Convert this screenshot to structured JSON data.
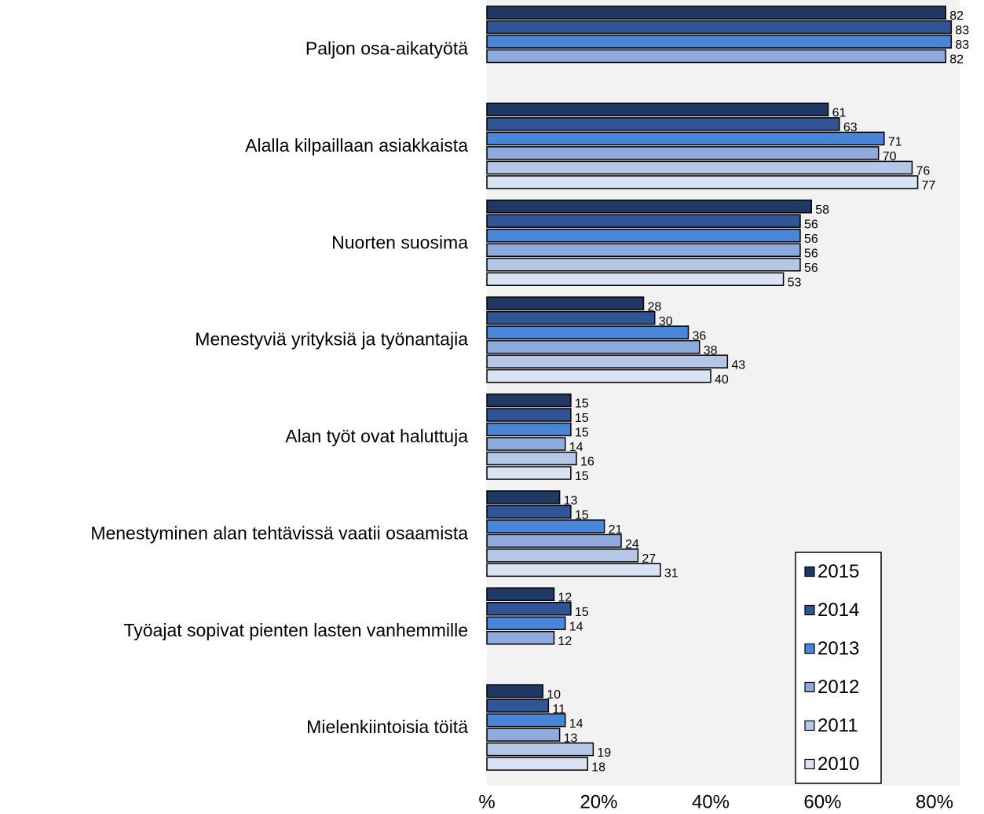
{
  "chart_data": {
    "type": "barh",
    "categories": [
      "Paljon osa-aikatyötä",
      "Alalla kilpaillaan asiakkaista",
      "Nuorten suosima",
      "Menestyviä yrityksiä ja työnantajia",
      "Alan työt ovat haluttuja",
      "Menestyminen alan tehtävissä vaatii osaamista",
      "Työajat sopivat pienten lasten vanhemmille",
      "Mielenkiintoisia töitä"
    ],
    "series": [
      {
        "name": "2015",
        "color": "#1f3864",
        "values": [
          82,
          61,
          58,
          28,
          15,
          13,
          12,
          10
        ]
      },
      {
        "name": "2014",
        "color": "#2f5597",
        "values": [
          83,
          63,
          56,
          30,
          15,
          15,
          15,
          11
        ]
      },
      {
        "name": "2013",
        "color": "#4a86d8",
        "values": [
          83,
          71,
          56,
          36,
          15,
          21,
          14,
          14
        ]
      },
      {
        "name": "2012",
        "color": "#8faadc",
        "values": [
          82,
          70,
          56,
          38,
          14,
          24,
          12,
          13
        ]
      },
      {
        "name": "2011",
        "color": "#b4c7e7",
        "values": [
          null,
          76,
          56,
          43,
          16,
          27,
          null,
          19
        ]
      },
      {
        "name": "2010",
        "color": "#dae3f3",
        "values": [
          null,
          77,
          53,
          40,
          15,
          31,
          null,
          18
        ]
      }
    ],
    "xlim": [
      0,
      84.5
    ],
    "xticks": [
      {
        "value": 0,
        "label": "%"
      },
      {
        "value": 20,
        "label": "20%"
      },
      {
        "value": 40,
        "label": "40%"
      },
      {
        "value": 60,
        "label": "60%"
      },
      {
        "value": 80,
        "label": "80%"
      }
    ],
    "legend": "lower right"
  }
}
